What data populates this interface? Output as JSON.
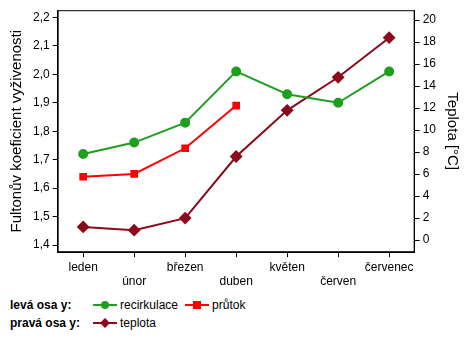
{
  "chart_data": {
    "type": "line",
    "categories": [
      "leden",
      "únor",
      "březen",
      "duben",
      "květen",
      "červen",
      "červenec"
    ],
    "y_label": "Fultonův koeficient vyživenosti",
    "y2_label": "Teplota [°C]",
    "ylim": [
      1.375,
      2.225
    ],
    "yticks": [
      {
        "value": 1.4,
        "label": "1,4"
      },
      {
        "value": 1.5,
        "label": "1,5"
      },
      {
        "value": 1.6,
        "label": "1,6"
      },
      {
        "value": 1.7,
        "label": "1,7"
      },
      {
        "value": 1.8,
        "label": "1,8"
      },
      {
        "value": 1.9,
        "label": "1,9"
      },
      {
        "value": 2.0,
        "label": "2,0"
      },
      {
        "value": 2.1,
        "label": "2,1"
      },
      {
        "value": 2.2,
        "label": "2,2"
      }
    ],
    "y2lim": [
      -1.1,
      20.9
    ],
    "y2ticks": [
      0,
      2,
      4,
      6,
      8,
      10,
      12,
      14,
      16,
      18,
      20
    ],
    "grid": false,
    "legend": "bottom",
    "legend_titles": {
      "y": "levá osa y:",
      "y2": "pravá osa y:"
    },
    "series": [
      {
        "name": "recirkulace",
        "color": "#1f9e1f",
        "marker": "circle",
        "line_style": "solid",
        "axis": "y",
        "values": [
          1.72,
          1.76,
          1.83,
          2.01,
          1.93,
          1.9,
          2.01
        ]
      },
      {
        "name": "průtok",
        "color": "#ff0000",
        "marker": "square",
        "line_style": "solid",
        "axis": "y",
        "values": [
          1.64,
          1.65,
          1.74,
          1.89,
          null,
          null,
          null
        ]
      },
      {
        "name": "teplota",
        "color": "#8b0a1a",
        "marker": "diamond",
        "line_style": "solid",
        "axis": "y2",
        "values": [
          1.2,
          0.9,
          2.0,
          7.6,
          11.8,
          14.8,
          18.4
        ]
      }
    ]
  }
}
